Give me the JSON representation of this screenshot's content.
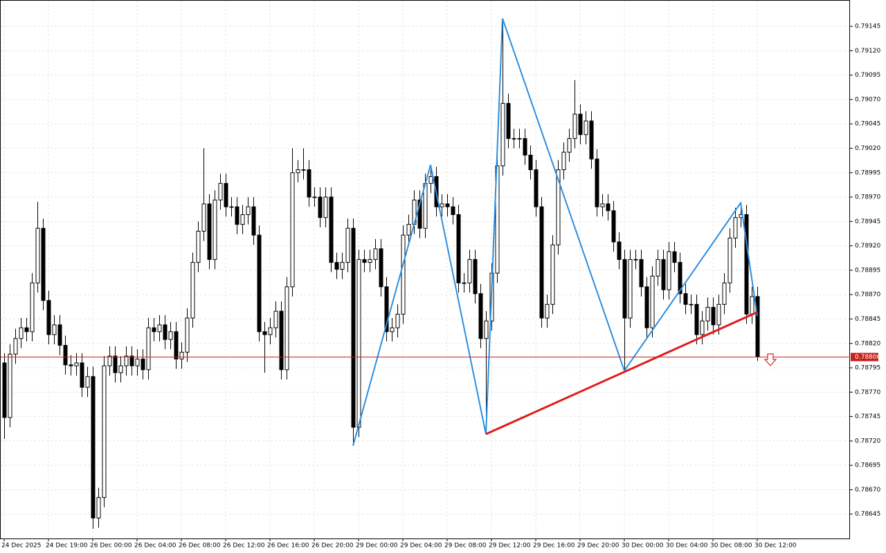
{
  "chart_data": {
    "type": "candlestick",
    "categories": [
      "24 Dec 2025",
      null,
      null,
      null,
      null,
      null,
      null,
      null,
      "24 Dec 19:00",
      null,
      null,
      null,
      null,
      null,
      null,
      null,
      "26 Dec 00:00",
      null,
      null,
      null,
      null,
      null,
      null,
      null,
      "26 Dec 04:00",
      null,
      null,
      null,
      null,
      null,
      null,
      null,
      "26 Dec 08:00",
      null,
      null,
      null,
      null,
      null,
      null,
      null,
      "26 Dec 12:00",
      null,
      null,
      null,
      null,
      null,
      null,
      null,
      "26 Dec 16:00",
      null,
      null,
      null,
      null,
      null,
      null,
      null,
      "26 Dec 20:00",
      null,
      null,
      null,
      null,
      null,
      null,
      null,
      "29 Dec 00:00",
      null,
      null,
      null,
      null,
      null,
      null,
      null,
      "29 Dec 04:00",
      null,
      null,
      null,
      null,
      null,
      null,
      null,
      "29 Dec 08:00",
      null,
      null,
      null,
      null,
      null,
      null,
      null,
      "29 Dec 12:00",
      null,
      null,
      null,
      null,
      null,
      null,
      null,
      "29 Dec 16:00",
      null,
      null,
      null,
      null,
      null,
      null,
      null,
      "29 Dec 20:00",
      null,
      null,
      null,
      null,
      null,
      null,
      null,
      "30 Dec 00:00",
      null,
      null,
      null,
      null,
      null,
      null,
      null,
      "30 Dec 04:00",
      null,
      null,
      null,
      null,
      null,
      null,
      null,
      "30 Dec 08:00",
      null,
      null,
      null,
      null,
      null,
      null,
      null,
      "30 Dec 12:00"
    ],
    "open": [
      0.788,
      0.78744,
      0.78809,
      0.78825,
      0.78836,
      0.78832,
      0.78882,
      0.78938,
      0.78864,
      0.78829,
      0.78839,
      0.78818,
      0.78798,
      0.78797,
      0.788,
      0.78775,
      0.78786,
      0.78641,
      0.78662,
      0.78797,
      0.78807,
      0.7879,
      0.78797,
      0.78807,
      0.78797,
      0.78804,
      0.78793,
      0.78836,
      0.78832,
      0.78839,
      0.78824,
      0.78832,
      0.78804,
      0.78811,
      0.78846,
      0.78903,
      0.78935,
      0.78963,
      0.78906,
      0.78967,
      0.78984,
      0.7896,
      0.7896,
      0.78942,
      0.78952,
      0.7896,
      0.78931,
      0.78832,
      0.78829,
      0.78836,
      0.78853,
      0.78793,
      0.78878,
      0.78995,
      0.78998,
      0.78998,
      0.7897,
      0.7897,
      0.78949,
      0.7897,
      0.78903,
      0.78896,
      0.78903,
      0.78938,
      0.78734,
      0.78906,
      0.78903,
      0.78906,
      0.78917,
      0.78878,
      0.78832,
      0.78836,
      0.7885,
      0.78931,
      0.78942,
      0.78967,
      0.78938,
      0.78984,
      0.78991,
      0.7896,
      0.78963,
      0.7896,
      0.78952,
      0.78882,
      0.78882,
      0.78906,
      0.78871,
      0.78825,
      0.78843,
      0.78892,
      0.79002,
      0.79066,
      0.7903,
      0.7903,
      0.7903,
      0.79013,
      0.78998,
      0.7896,
      0.78846,
      0.7886,
      0.78921,
      0.78998,
      0.79016,
      0.7903,
      0.79055,
      0.79034,
      0.79048,
      0.79009,
      0.7896,
      0.78963,
      0.78956,
      0.78924,
      0.78906,
      0.78846,
      0.78906,
      0.78906,
      0.78878,
      0.78836,
      0.78889,
      0.78906,
      0.78875,
      0.78914,
      0.78903,
      0.78871,
      0.7886,
      0.7886,
      0.78829,
      0.78843,
      0.78857,
      0.78839,
      0.7886,
      0.78882,
      0.78928,
      0.78949,
      0.78952,
      0.7885,
      0.78868
    ],
    "high": [
      0.7881,
      0.78819,
      0.78835,
      0.78846,
      0.78846,
      0.78892,
      0.78965,
      0.78948,
      0.78874,
      0.78849,
      0.78849,
      0.78828,
      0.78808,
      0.7881,
      0.7881,
      0.78796,
      0.78796,
      0.78672,
      0.78807,
      0.78817,
      0.78817,
      0.78807,
      0.78817,
      0.78817,
      0.78814,
      0.78814,
      0.78846,
      0.78846,
      0.78849,
      0.78849,
      0.78842,
      0.78842,
      0.78821,
      0.78856,
      0.78913,
      0.78945,
      0.7902,
      0.78973,
      0.78977,
      0.78994,
      0.78994,
      0.7897,
      0.7897,
      0.78962,
      0.7897,
      0.7897,
      0.78941,
      0.78842,
      0.78846,
      0.78863,
      0.78863,
      0.78888,
      0.7902,
      0.79008,
      0.7902,
      0.79008,
      0.7898,
      0.7898,
      0.7898,
      0.7898,
      0.78913,
      0.78913,
      0.78948,
      0.78948,
      0.78916,
      0.78916,
      0.78916,
      0.78927,
      0.78927,
      0.78888,
      0.78846,
      0.7886,
      0.78941,
      0.78952,
      0.78977,
      0.78977,
      0.78994,
      0.79003,
      0.79001,
      0.78973,
      0.78973,
      0.7897,
      0.78962,
      0.78892,
      0.78916,
      0.78916,
      0.78881,
      0.78853,
      0.78902,
      0.79012,
      0.79153,
      0.79076,
      0.7904,
      0.7904,
      0.7904,
      0.79023,
      0.79008,
      0.7897,
      0.7887,
      0.78931,
      0.79008,
      0.79026,
      0.7904,
      0.7909,
      0.79065,
      0.79058,
      0.79058,
      0.79019,
      0.78973,
      0.78973,
      0.78966,
      0.78934,
      0.78916,
      0.78916,
      0.78916,
      0.78916,
      0.78888,
      0.78899,
      0.78916,
      0.78916,
      0.78924,
      0.78924,
      0.78913,
      0.78881,
      0.7887,
      0.7887,
      0.78853,
      0.78867,
      0.78867,
      0.7887,
      0.78892,
      0.78938,
      0.78959,
      0.78964,
      0.78962,
      0.78878,
      0.78878
    ],
    "low": [
      0.78722,
      0.78734,
      0.78799,
      0.78815,
      0.78822,
      0.78822,
      0.78872,
      0.78854,
      0.78819,
      0.78819,
      0.78808,
      0.78788,
      0.78787,
      0.78787,
      0.78765,
      0.78765,
      0.7863,
      0.78631,
      0.78652,
      0.78787,
      0.7878,
      0.7878,
      0.78787,
      0.78787,
      0.78787,
      0.78783,
      0.78783,
      0.78822,
      0.78822,
      0.78814,
      0.78814,
      0.78794,
      0.78794,
      0.78801,
      0.78836,
      0.78893,
      0.78925,
      0.78896,
      0.78896,
      0.78957,
      0.7895,
      0.7895,
      0.78932,
      0.78932,
      0.78942,
      0.78921,
      0.78822,
      0.7879,
      0.78819,
      0.78826,
      0.78783,
      0.78783,
      0.78868,
      0.78985,
      0.78988,
      0.7896,
      0.7896,
      0.78939,
      0.78939,
      0.78893,
      0.78886,
      0.78886,
      0.78893,
      0.78715,
      0.78724,
      0.78893,
      0.78893,
      0.78896,
      0.78868,
      0.78822,
      0.78822,
      0.78826,
      0.7884,
      0.78921,
      0.78932,
      0.78928,
      0.78928,
      0.78974,
      0.7895,
      0.7895,
      0.7895,
      0.78942,
      0.78872,
      0.78872,
      0.78872,
      0.78861,
      0.78815,
      0.78727,
      0.78833,
      0.78882,
      0.78992,
      0.7902,
      0.7902,
      0.7902,
      0.79003,
      0.78988,
      0.7895,
      0.78836,
      0.78836,
      0.7885,
      0.78911,
      0.78988,
      0.79006,
      0.7902,
      0.79024,
      0.79024,
      0.78999,
      0.7895,
      0.7895,
      0.78946,
      0.78914,
      0.78896,
      0.78792,
      0.78836,
      0.78896,
      0.78868,
      0.78826,
      0.78826,
      0.78879,
      0.78865,
      0.78865,
      0.78893,
      0.78861,
      0.7885,
      0.7885,
      0.78819,
      0.78819,
      0.78833,
      0.78829,
      0.78829,
      0.7885,
      0.78872,
      0.78918,
      0.78939,
      0.7884,
      0.7884,
      0.78802
    ],
    "close": [
      0.78744,
      0.78809,
      0.78825,
      0.78836,
      0.78832,
      0.78882,
      0.78938,
      0.78864,
      0.78829,
      0.78839,
      0.78818,
      0.78798,
      0.78797,
      0.788,
      0.78775,
      0.78786,
      0.78641,
      0.78662,
      0.78797,
      0.78807,
      0.7879,
      0.78797,
      0.78807,
      0.78797,
      0.78804,
      0.78793,
      0.78836,
      0.78832,
      0.78839,
      0.78824,
      0.78832,
      0.78804,
      0.78811,
      0.78846,
      0.78903,
      0.78935,
      0.78963,
      0.78906,
      0.78967,
      0.78984,
      0.7896,
      0.7896,
      0.78942,
      0.78952,
      0.7896,
      0.78931,
      0.78832,
      0.78829,
      0.78836,
      0.78853,
      0.78793,
      0.78878,
      0.78995,
      0.78998,
      0.78998,
      0.7897,
      0.7897,
      0.78949,
      0.7897,
      0.78903,
      0.78896,
      0.78903,
      0.78938,
      0.78734,
      0.78906,
      0.78903,
      0.78906,
      0.78917,
      0.78878,
      0.78832,
      0.78836,
      0.7885,
      0.78931,
      0.78942,
      0.78967,
      0.78938,
      0.78984,
      0.78991,
      0.7896,
      0.78963,
      0.7896,
      0.78952,
      0.78882,
      0.78882,
      0.78906,
      0.78871,
      0.78825,
      0.78843,
      0.78892,
      0.79002,
      0.79066,
      0.7903,
      0.7903,
      0.7903,
      0.79013,
      0.78998,
      0.7896,
      0.78846,
      0.7886,
      0.78921,
      0.78998,
      0.79016,
      0.7903,
      0.79055,
      0.79034,
      0.79048,
      0.79009,
      0.7896,
      0.78963,
      0.78956,
      0.78924,
      0.78906,
      0.78846,
      0.78906,
      0.78906,
      0.78878,
      0.78836,
      0.78889,
      0.78906,
      0.78875,
      0.78914,
      0.78903,
      0.78871,
      0.7886,
      0.7886,
      0.78829,
      0.78843,
      0.78857,
      0.78839,
      0.7886,
      0.78882,
      0.78928,
      0.78949,
      0.78952,
      0.7885,
      0.78868,
      0.78806
    ],
    "zigzag": {
      "color": "#2b8ee0",
      "x": [
        63,
        77,
        87,
        90,
        112,
        133,
        136
      ],
      "values": [
        0.78715,
        0.79003,
        0.78727,
        0.79153,
        0.78792,
        0.78964,
        0.78848
      ]
    },
    "trendline": {
      "color": "#e01b1b",
      "x": [
        87,
        136
      ],
      "values": [
        0.78727,
        0.78852
      ]
    },
    "last_price": 0.78806,
    "last_price_color": "#c81e1e",
    "ylim": [
      0.7862,
      0.79172
    ],
    "yticks": [
      0.79145,
      {
        "value": 0.7912,
        "label": "0.79120"
      },
      0.79095,
      {
        "value": 0.7907,
        "label": "0.79070"
      },
      0.79045,
      {
        "value": 0.7902,
        "label": "0.79020"
      },
      0.78995,
      {
        "value": 0.7897,
        "label": "0.78970"
      },
      0.78945,
      {
        "value": 0.7892,
        "label": "0.78920"
      },
      0.78895,
      {
        "value": 0.7887,
        "label": "0.78870"
      },
      0.78845,
      {
        "value": 0.7882,
        "label": "0.78820"
      },
      0.78795,
      {
        "value": 0.7877,
        "label": "0.78770"
      },
      0.78745,
      {
        "value": 0.7872,
        "label": "0.78720"
      },
      0.78695,
      {
        "value": 0.7867,
        "label": "0.78670"
      },
      0.78645
    ],
    "grid": true
  }
}
